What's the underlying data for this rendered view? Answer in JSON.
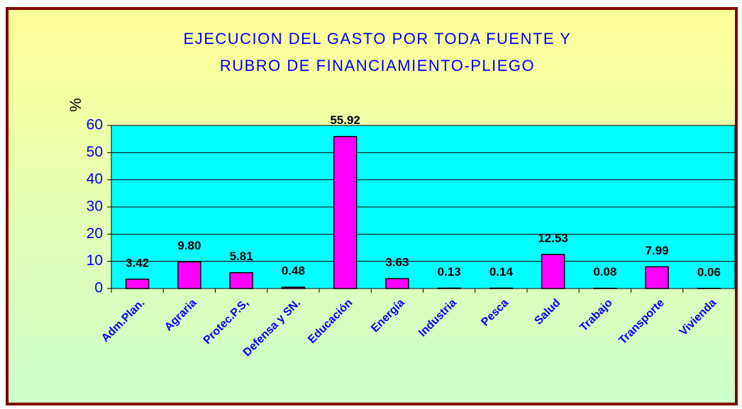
{
  "chart_data": {
    "type": "bar",
    "title": [
      "EJECUCION DEL GASTO POR TODA FUENTE Y",
      "RUBRO DE FINANCIAMIENTO-PLIEGO"
    ],
    "y_label": "%",
    "categories": [
      "Adm.Plan.",
      "Agraria",
      "Protec.P.S,",
      "Defensa y SN.",
      "Educación",
      "Energía",
      "Industria",
      "Pesca",
      "Salud",
      "Trabajo",
      "Transporte",
      "Vivienda"
    ],
    "values": [
      3.42,
      9.8,
      5.81,
      0.48,
      55.92,
      3.63,
      0.13,
      0.14,
      12.53,
      0.08,
      7.99,
      0.06
    ],
    "value_labels": [
      "3.42",
      "9.80",
      "5.81",
      "0.48",
      "55.92",
      "3.63",
      "0.13",
      "0.14",
      "12.53",
      "0.08",
      "7.99",
      "0.06"
    ],
    "color": "#ff00ff",
    "ylim": [
      0,
      60
    ],
    "yticks": [
      0,
      10,
      20,
      30,
      40,
      50,
      60
    ],
    "grid": true
  }
}
